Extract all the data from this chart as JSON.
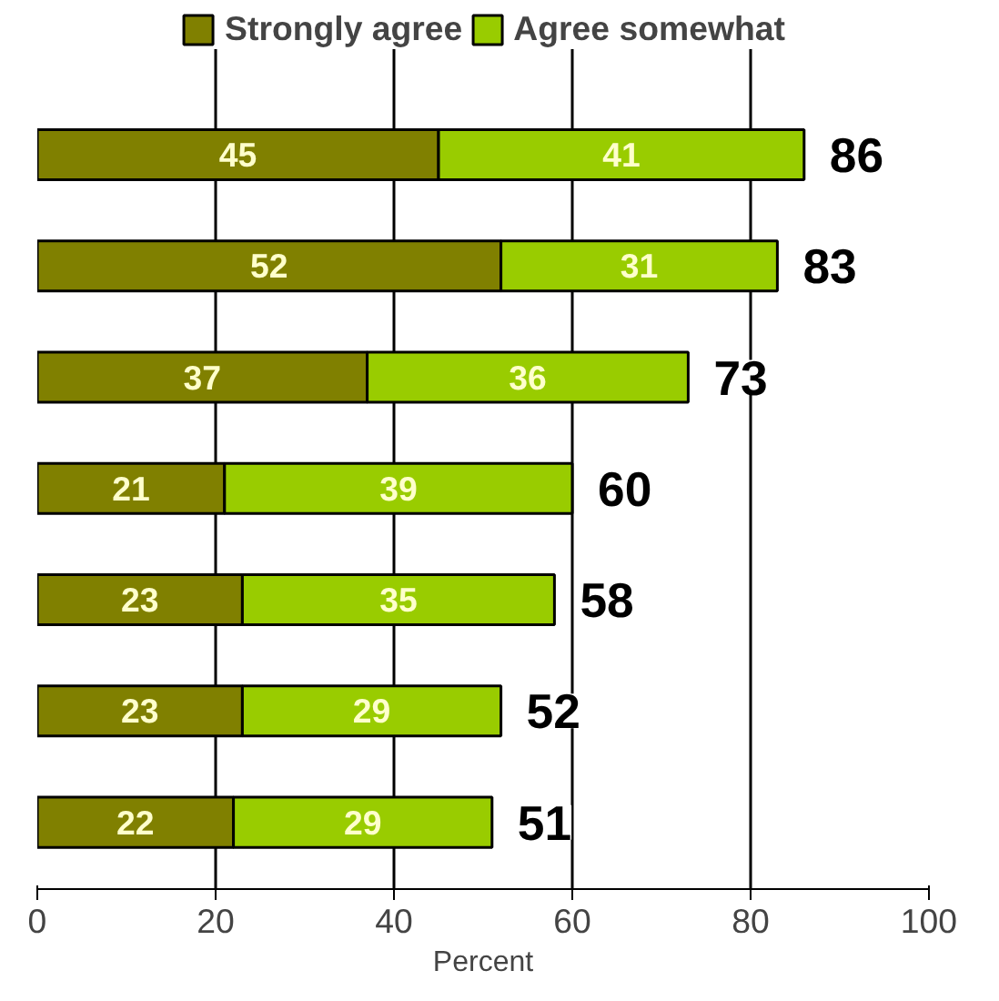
{
  "chart_data": {
    "type": "bar",
    "orientation": "horizontal",
    "stacked": true,
    "categories": [
      null,
      null,
      null,
      null,
      null,
      null,
      null
    ],
    "series": [
      {
        "name": "Strongly agree",
        "color": "#808000",
        "values": [
          45,
          52,
          37,
          21,
          23,
          23,
          22
        ]
      },
      {
        "name": "Agree somewhat",
        "color": "#99cc00",
        "values": [
          41,
          31,
          36,
          39,
          35,
          29,
          29
        ]
      }
    ],
    "totals": [
      "86",
      "83",
      "73",
      "60",
      "58",
      "52",
      "51"
    ],
    "data_labels": true,
    "xlabel": "Percent",
    "xlim": [
      0,
      100
    ],
    "xticks": [
      0,
      20,
      40,
      60,
      80,
      100
    ],
    "grid": "x",
    "legend": "top"
  }
}
